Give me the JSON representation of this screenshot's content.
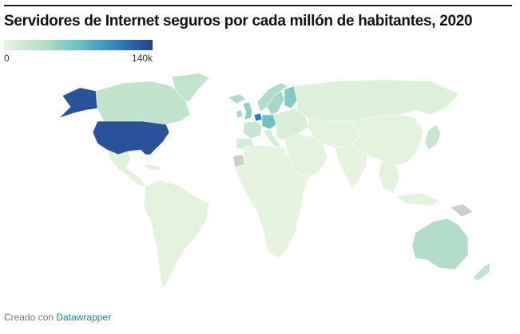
{
  "title": "Servidores de Internet seguros por cada millón de habitantes, 2020",
  "legend": {
    "min_label": "0",
    "max_label": "140k",
    "min_value": 0,
    "max_value": 140000,
    "colors": [
      "#e8f5e0",
      "#b8e0c8",
      "#6cc2c4",
      "#2f86bd",
      "#253f8c"
    ]
  },
  "no_data_color": "#cccccc",
  "regions": [
    {
      "name": "United States",
      "value": 130000
    },
    {
      "name": "Alaska",
      "value": 130000
    },
    {
      "name": "Canada",
      "value": 30000
    },
    {
      "name": "Greenland",
      "value": 28000
    },
    {
      "name": "Mexico",
      "value": 6000
    },
    {
      "name": "Central America",
      "value": 4000
    },
    {
      "name": "Caribbean",
      "value": 5000
    },
    {
      "name": "South America",
      "value": 3000
    },
    {
      "name": "Iceland",
      "value": 40000
    },
    {
      "name": "United Kingdom",
      "value": 55000
    },
    {
      "name": "Ireland",
      "value": 45000
    },
    {
      "name": "Norway",
      "value": 40000
    },
    {
      "name": "Sweden",
      "value": 45000
    },
    {
      "name": "Finland",
      "value": 60000
    },
    {
      "name": "Netherlands",
      "value": 110000
    },
    {
      "name": "Germany",
      "value": 70000
    },
    {
      "name": "France",
      "value": 25000
    },
    {
      "name": "Iberia",
      "value": 15000
    },
    {
      "name": "Italy",
      "value": 12000
    },
    {
      "name": "Eastern Europe",
      "value": 10000
    },
    {
      "name": "Russia",
      "value": 7000
    },
    {
      "name": "Middle East",
      "value": 4000
    },
    {
      "name": "Africa",
      "value": 1000
    },
    {
      "name": "Western Sahara",
      "value": null
    },
    {
      "name": "Central Asia",
      "value": 3000
    },
    {
      "name": "China",
      "value": 3000
    },
    {
      "name": "India",
      "value": 1000
    },
    {
      "name": "Japan",
      "value": 25000
    },
    {
      "name": "Southeast Asia",
      "value": 4000
    },
    {
      "name": "Papua New Guinea",
      "value": null
    },
    {
      "name": "Australia",
      "value": 38000
    },
    {
      "name": "New Zealand",
      "value": 30000
    }
  ],
  "credit": {
    "prefix": "Creado con",
    "link": "Datawrapper"
  }
}
